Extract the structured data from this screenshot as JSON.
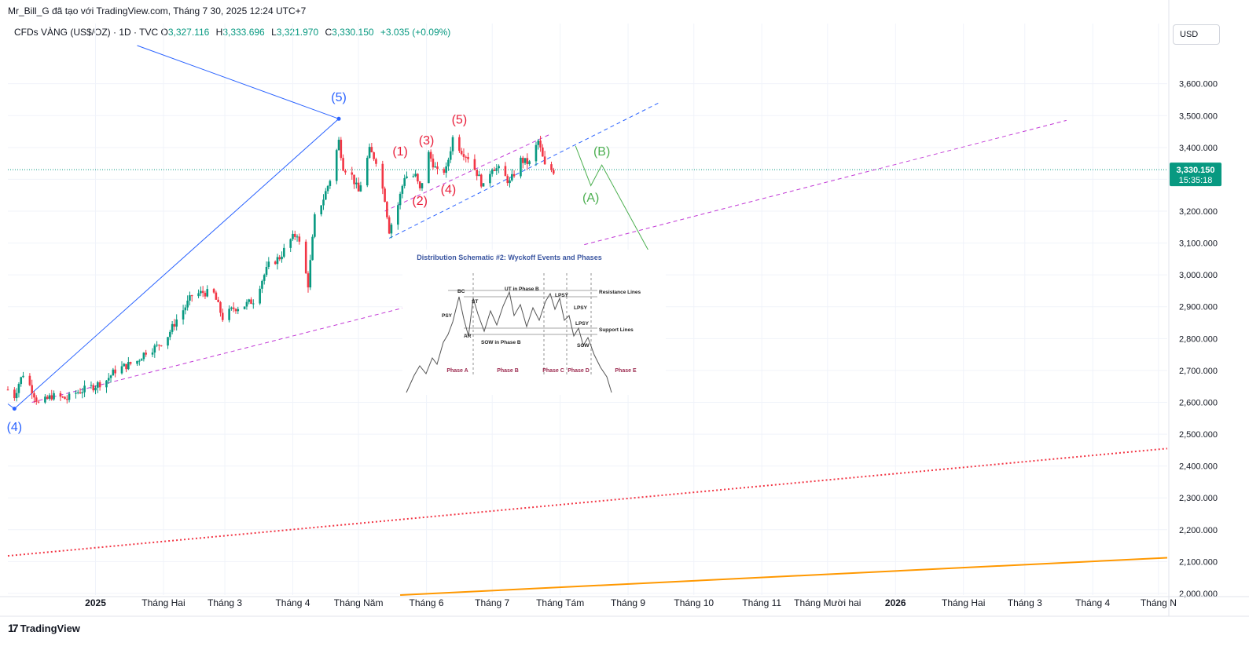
{
  "header": {
    "author_line": "Mr_Bill_G đã tạo với TradingView.com, Tháng 7 30, 2025 12:24 UTC+7",
    "symbol": "CFDs VÀNG (US$/OZ) · 1D · TVC",
    "ohlc": [
      {
        "key": "O",
        "value": "3,327.116"
      },
      {
        "key": "H",
        "value": "3,333.696"
      },
      {
        "key": "L",
        "value": "3,321.970"
      },
      {
        "key": "C",
        "value": "3,330.150"
      }
    ],
    "change": "+3.035 (+0.09%)"
  },
  "currency_button": "USD",
  "branding": {
    "logo_mark": "17",
    "logo_text": "TradingView"
  },
  "colors": {
    "up": "#089981",
    "down": "#f23645",
    "elliott_blue": "#2962ff",
    "elliott_red": "#e91e3a",
    "projection_green": "#4caf50",
    "channel_magenta": "#c23ad6",
    "support_red": "#f23645",
    "support_orange": "#ff9800",
    "grid": "#f0f3fa"
  },
  "chart_data": {
    "type": "candlestick",
    "timeframe": "1D",
    "y_axis": {
      "ticks": [
        "3,600.000",
        "3,500.000",
        "3,400.000",
        "3,300.000",
        "3,200.000",
        "3,100.000",
        "3,000.000",
        "2,900.000",
        "2,800.000",
        "2,700.000",
        "2,600.000",
        "2,500.000",
        "2,400.000",
        "2,300.000",
        "2,200.000",
        "2,100.000",
        "2,000.000"
      ],
      "range": [
        1995,
        3715
      ]
    },
    "x_axis": {
      "ticks": [
        {
          "label": "2025",
          "date": "2025-01-01",
          "bold": true
        },
        {
          "label": "Tháng Hai",
          "date": "2025-02-01"
        },
        {
          "label": "Tháng 3",
          "date": "2025-03-01"
        },
        {
          "label": "Tháng 4",
          "date": "2025-04-01"
        },
        {
          "label": "Tháng Năm",
          "date": "2025-05-01"
        },
        {
          "label": "Tháng 6",
          "date": "2025-06-01"
        },
        {
          "label": "Tháng 7",
          "date": "2025-07-01"
        },
        {
          "label": "Tháng Tám",
          "date": "2025-08-01"
        },
        {
          "label": "Tháng 9",
          "date": "2025-09-01"
        },
        {
          "label": "Tháng 10",
          "date": "2025-10-01"
        },
        {
          "label": "Tháng 11",
          "date": "2025-11-01"
        },
        {
          "label": "Tháng Mười hai",
          "date": "2025-12-01"
        },
        {
          "label": "2026",
          "date": "2026-01-01",
          "bold": true
        },
        {
          "label": "Tháng Hai",
          "date": "2026-02-01"
        },
        {
          "label": "Tháng 3",
          "date": "2026-03-01"
        },
        {
          "label": "Tháng 4",
          "date": "2026-04-01"
        },
        {
          "label": "Tháng N",
          "date": "2026-05-01"
        }
      ],
      "range": [
        "2024-11-22",
        "2026-05-05"
      ]
    },
    "current_price": {
      "price": "3,330.150",
      "countdown": "15:35:18",
      "value": 3330.15
    },
    "price_path": [
      [
        "2024-11-22",
        2640
      ],
      [
        "2024-11-25",
        2620
      ],
      [
        "2024-11-27",
        2660
      ],
      [
        "2024-11-29",
        2690
      ],
      [
        "2024-12-03",
        2640
      ],
      [
        "2024-12-06",
        2595
      ],
      [
        "2024-12-09",
        2605
      ],
      [
        "2024-12-12",
        2620
      ],
      [
        "2024-12-16",
        2615
      ],
      [
        "2024-12-19",
        2610
      ],
      [
        "2024-12-23",
        2630
      ],
      [
        "2024-12-27",
        2640
      ],
      [
        "2024-12-31",
        2650
      ],
      [
        "2025-01-06",
        2670
      ],
      [
        "2025-01-10",
        2700
      ],
      [
        "2025-01-15",
        2715
      ],
      [
        "2025-01-20",
        2730
      ],
      [
        "2025-01-24",
        2760
      ],
      [
        "2025-01-29",
        2775
      ],
      [
        "2025-02-03",
        2810
      ],
      [
        "2025-02-07",
        2860
      ],
      [
        "2025-02-11",
        2900
      ],
      [
        "2025-02-14",
        2935
      ],
      [
        "2025-02-19",
        2945
      ],
      [
        "2025-02-24",
        2940
      ],
      [
        "2025-02-28",
        2865
      ],
      [
        "2025-03-05",
        2895
      ],
      [
        "2025-03-10",
        2905
      ],
      [
        "2025-03-14",
        2920
      ],
      [
        "2025-03-18",
        2985
      ],
      [
        "2025-03-21",
        3030
      ],
      [
        "2025-03-26",
        3055
      ],
      [
        "2025-03-31",
        3110
      ],
      [
        "2025-04-03",
        3130
      ],
      [
        "2025-04-08",
        2970
      ],
      [
        "2025-04-11",
        3180
      ],
      [
        "2025-04-15",
        3240
      ],
      [
        "2025-04-18",
        3300
      ],
      [
        "2025-04-22",
        3420
      ],
      [
        "2025-04-24",
        3340
      ],
      [
        "2025-04-28",
        3310
      ],
      [
        "2025-05-01",
        3260
      ],
      [
        "2025-05-06",
        3390
      ],
      [
        "2025-05-09",
        3360
      ],
      [
        "2025-05-13",
        3240
      ],
      [
        "2025-05-15",
        3140
      ],
      [
        "2025-05-19",
        3220
      ],
      [
        "2025-05-22",
        3310
      ],
      [
        "2025-05-27",
        3310
      ],
      [
        "2025-05-29",
        3265
      ],
      [
        "2025-06-02",
        3380
      ],
      [
        "2025-06-06",
        3320
      ],
      [
        "2025-06-10",
        3330
      ],
      [
        "2025-06-13",
        3430
      ],
      [
        "2025-06-17",
        3390
      ],
      [
        "2025-06-20",
        3370
      ],
      [
        "2025-06-24",
        3320
      ],
      [
        "2025-06-27",
        3275
      ],
      [
        "2025-07-01",
        3340
      ],
      [
        "2025-07-04",
        3330
      ],
      [
        "2025-07-09",
        3290
      ],
      [
        "2025-07-14",
        3360
      ],
      [
        "2025-07-18",
        3350
      ],
      [
        "2025-07-22",
        3420
      ],
      [
        "2025-07-25",
        3340
      ],
      [
        "2025-07-29",
        3327
      ]
    ],
    "annotations": {
      "elliott_blue": [
        {
          "label": "(4)",
          "date": "2024-11-25",
          "price": 2510,
          "color": "#2962ff"
        },
        {
          "label": "(5)",
          "date": "2025-04-22",
          "price": 3545,
          "color": "#2962ff"
        }
      ],
      "elliott_red": [
        {
          "label": "(1)",
          "date": "2025-05-20",
          "price": 3375,
          "color": "#e91e3a"
        },
        {
          "label": "(2)",
          "date": "2025-05-29",
          "price": 3220,
          "color": "#e91e3a"
        },
        {
          "label": "(3)",
          "date": "2025-06-01",
          "price": 3410,
          "color": "#e91e3a"
        },
        {
          "label": "(4)",
          "date": "2025-06-11",
          "price": 3255,
          "color": "#e91e3a"
        },
        {
          "label": "(5)",
          "date": "2025-06-16",
          "price": 3475,
          "color": "#e91e3a"
        }
      ],
      "projection_green": [
        {
          "label": "(A)",
          "date": "2025-08-15",
          "price": 3230,
          "color": "#4caf50"
        },
        {
          "label": "(B)",
          "date": "2025-08-20",
          "price": 3375,
          "color": "#4caf50"
        }
      ]
    },
    "inset": {
      "title": "Distribution Schematic #2: Wyckoff Events and Phases",
      "labels": [
        "PSY",
        "BC",
        "AR",
        "ST",
        "SOW in Phase B",
        "UT in Phase B",
        "LPSY",
        "LPSY",
        "LPSY",
        "SOW",
        "Resistance Lines",
        "Support Lines"
      ],
      "phases": [
        "Phase A",
        "Phase B",
        "Phase C",
        "Phase D",
        "Phase E"
      ]
    }
  }
}
